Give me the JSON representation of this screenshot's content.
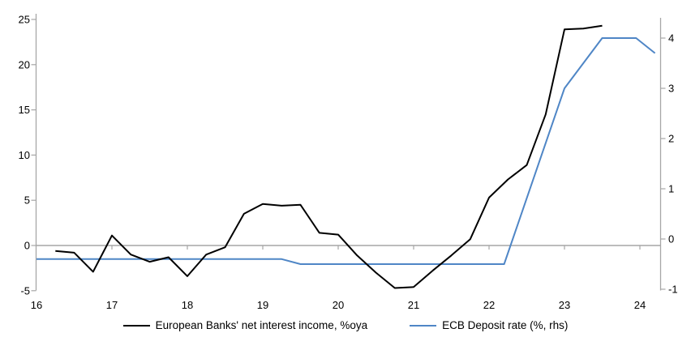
{
  "chart_data": {
    "type": "line",
    "title": "",
    "x_axis": {
      "ticks": [
        16,
        17,
        18,
        19,
        20,
        21,
        22,
        23,
        24
      ],
      "min": 16,
      "max": 24.28,
      "tick_style": "ticks on zero line, labels at bottom"
    },
    "left_axis": {
      "ticks": [
        25,
        20,
        15,
        10,
        5,
        0,
        -5
      ],
      "min": -5.5,
      "max": 25.6,
      "applies_to": "European Banks' net interest income, %oya"
    },
    "right_axis": {
      "ticks": [
        4,
        3,
        2,
        1,
        0,
        -1
      ],
      "min": -1.05,
      "max": 4.4,
      "applies_to": "ECB Deposit rate (%, rhs)"
    },
    "grid": "zero-line-only",
    "legend_position": "bottom",
    "series": [
      {
        "name": "European Banks' net interest income, %oya",
        "axis": "left",
        "color": "#000000",
        "x": [
          16.25,
          16.5,
          16.75,
          17.0,
          17.25,
          17.5,
          17.75,
          18.0,
          18.25,
          18.5,
          18.75,
          19.0,
          19.25,
          19.5,
          19.75,
          20.0,
          20.25,
          20.5,
          20.75,
          21.0,
          21.25,
          21.5,
          21.75,
          22.0,
          22.25,
          22.5,
          22.75,
          23.0,
          23.25,
          23.5
        ],
        "values": [
          -0.6,
          -0.8,
          -2.9,
          1.1,
          -1.0,
          -1.8,
          -1.3,
          -3.4,
          -1.0,
          -0.2,
          3.5,
          4.6,
          4.4,
          4.5,
          1.4,
          1.2,
          -1.1,
          -3.0,
          -4.7,
          -4.6,
          -2.8,
          -1.1,
          0.7,
          5.3,
          7.3,
          8.9,
          14.5,
          23.9,
          24.0,
          24.3
        ]
      },
      {
        "name": "ECB Deposit rate (%, rhs)",
        "axis": "right",
        "color": "#4F86C6",
        "x": [
          16.0,
          19.25,
          19.5,
          22.2,
          23.0,
          23.5,
          23.95,
          24.2
        ],
        "values": [
          -0.4,
          -0.4,
          -0.5,
          -0.5,
          3.0,
          4.0,
          4.0,
          3.7
        ]
      }
    ]
  },
  "colors": {
    "background": "#FFFFFF",
    "axis": "#A6A6A6",
    "text": "#000000",
    "series_nii": "#000000",
    "series_ecb": "#4F86C6"
  }
}
